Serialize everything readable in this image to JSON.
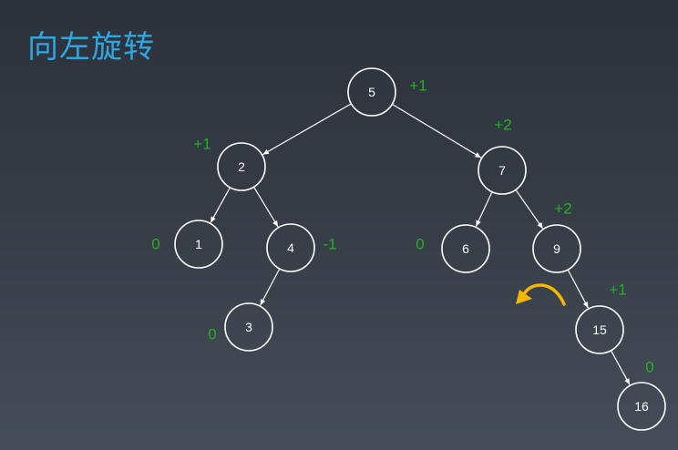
{
  "title": "向左旋转",
  "colors": {
    "title": "#2fa6e0",
    "balance_factor": "#22b022",
    "node": "#ffffff",
    "rotation_arrow": "#f5b800"
  },
  "nodes": [
    {
      "id": "n5",
      "label": "5"
    },
    {
      "id": "n2",
      "label": "2"
    },
    {
      "id": "n7",
      "label": "7"
    },
    {
      "id": "n1",
      "label": "1"
    },
    {
      "id": "n4",
      "label": "4"
    },
    {
      "id": "n6",
      "label": "6"
    },
    {
      "id": "n9",
      "label": "9"
    },
    {
      "id": "n3",
      "label": "3"
    },
    {
      "id": "n15",
      "label": "15"
    },
    {
      "id": "n16",
      "label": "16"
    }
  ],
  "balance_factors": [
    {
      "node": "n5",
      "value": "+1"
    },
    {
      "node": "n2",
      "value": "+1"
    },
    {
      "node": "n7",
      "value": "+2"
    },
    {
      "node": "n1",
      "value": "0"
    },
    {
      "node": "n4",
      "value": "-1"
    },
    {
      "node": "n6",
      "value": "0"
    },
    {
      "node": "n9",
      "value": "+2"
    },
    {
      "node": "n3",
      "value": "0"
    },
    {
      "node": "n15",
      "value": "+1"
    },
    {
      "node": "n16",
      "value": "0"
    }
  ],
  "edges": [
    [
      "n5",
      "n2"
    ],
    [
      "n5",
      "n7"
    ],
    [
      "n2",
      "n1"
    ],
    [
      "n2",
      "n4"
    ],
    [
      "n4",
      "n3"
    ],
    [
      "n7",
      "n6"
    ],
    [
      "n7",
      "n9"
    ],
    [
      "n9",
      "n15"
    ],
    [
      "n15",
      "n16"
    ]
  ],
  "rotation_arrow": {
    "direction": "counter-clockwise",
    "icon": "rotate-left-arrow-icon"
  }
}
